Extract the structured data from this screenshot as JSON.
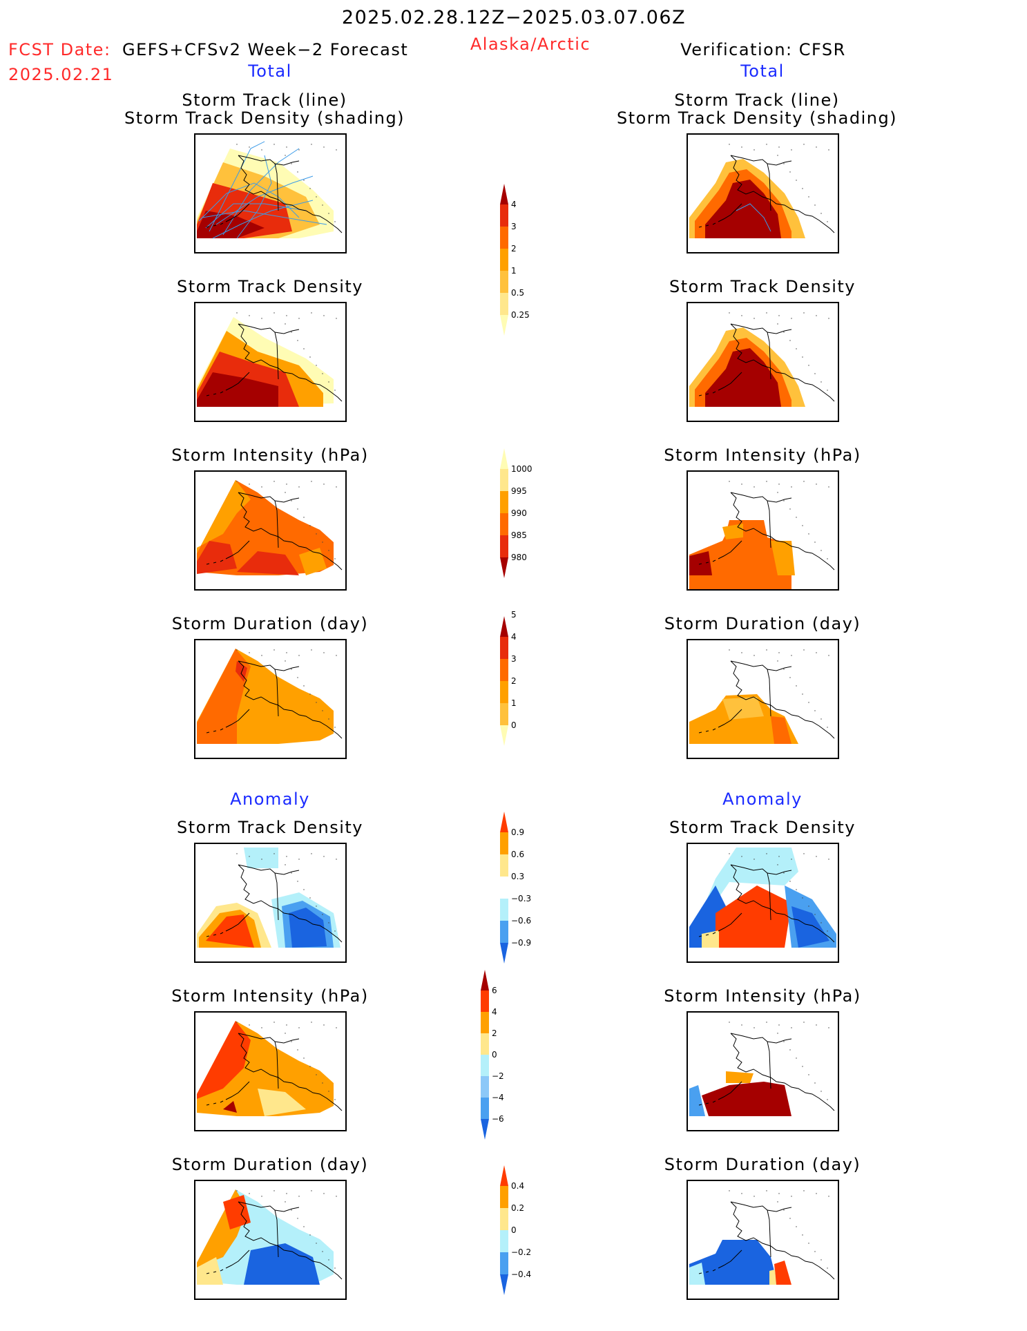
{
  "header": {
    "date_range": "2025.02.28.12Z−2025.03.07.06Z",
    "fcst_label": "FCST Date:",
    "fcst_model": "GEFS+CFSv2 Week−2 Forecast",
    "fcst_date": "2025.02.21",
    "region": "Alaska/Arctic",
    "verification": "Verification: CFSR"
  },
  "sections": {
    "total": "Total",
    "anomaly": "Anomaly"
  },
  "panel_titles": {
    "track_line": "Storm Track (line)",
    "track_density_shading": "Storm Track Density (shading)",
    "track_density": "Storm Track Density",
    "intensity": "Storm Intensity (hPa)",
    "duration": "Storm Duration (day)"
  },
  "colors": {
    "title_red": "#ff2a2a",
    "section_blue": "#1a2aff",
    "track_line": "#3b9be8"
  },
  "chart_data": [
    {
      "type": "heatmap",
      "name": "total-track-density-colorbar",
      "levels": [
        "0.25",
        "0.5",
        "1",
        "2",
        "3",
        "4"
      ],
      "colors": [
        "#fffcb4",
        "#ffe78c",
        "#ffc13c",
        "#ffa000",
        "#ff6a00",
        "#e82c0c",
        "#a50000"
      ]
    },
    {
      "type": "heatmap",
      "name": "total-intensity-colorbar",
      "levels": [
        "980",
        "985",
        "990",
        "995",
        "1000"
      ],
      "colors": [
        "#a50000",
        "#e82c0c",
        "#ff6a00",
        "#ffa000",
        "#ffe78c",
        "#fffcb4"
      ]
    },
    {
      "type": "heatmap",
      "name": "total-duration-colorbar",
      "levels": [
        "0",
        "1",
        "2",
        "3",
        "4",
        "5"
      ],
      "colors": [
        "#fffcb4",
        "#ffc13c",
        "#ffa000",
        "#ff6a00",
        "#e82c0c",
        "#a50000"
      ]
    },
    {
      "type": "heatmap",
      "name": "anomaly-track-density-colorbar",
      "levels": [
        "−0.9",
        "−0.6",
        "−0.3",
        "0.3",
        "0.6",
        "0.9"
      ],
      "colors": [
        "#1a64e0",
        "#4aa0f0",
        "#b4f0fa",
        "#ffffff",
        "#ffe78c",
        "#ffa000",
        "#ff3c00"
      ]
    },
    {
      "type": "heatmap",
      "name": "anomaly-intensity-colorbar",
      "levels": [
        "−6",
        "−4",
        "−2",
        "0",
        "2",
        "4",
        "6"
      ],
      "colors": [
        "#1a64e0",
        "#4aa0f0",
        "#8cc8f8",
        "#b4f0fa",
        "#ffe78c",
        "#ffa000",
        "#ff3c00",
        "#a50000"
      ]
    },
    {
      "type": "heatmap",
      "name": "anomaly-duration-colorbar",
      "levels": [
        "−0.4",
        "−0.2",
        "0",
        "0.2",
        "0.4"
      ],
      "colors": [
        "#1a64e0",
        "#4aa0f0",
        "#b4f0fa",
        "#ffe78c",
        "#ffa000",
        "#ff3c00"
      ]
    }
  ]
}
